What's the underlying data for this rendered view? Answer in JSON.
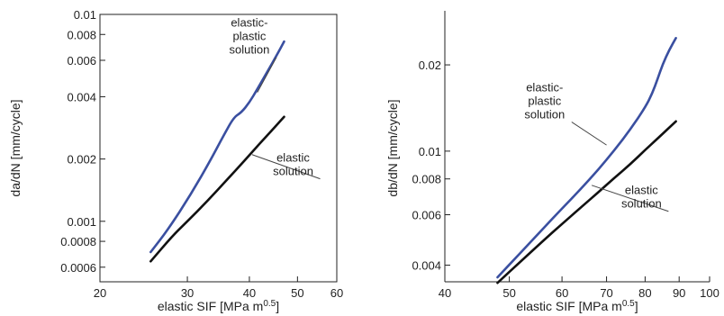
{
  "chart_data": [
    {
      "type": "line",
      "xlabel": "elastic SIF [MPa m",
      "xlabel_sup": "0.5",
      "xlabel_end": "]",
      "ylabel": "da/dN [mm/cycle]",
      "xscale": "log",
      "yscale": "log",
      "xlim": [
        20,
        60
      ],
      "ylim": [
        0.00051,
        0.01
      ],
      "xticks": [
        20,
        30,
        40,
        50,
        60
      ],
      "xtick_labels": [
        "20",
        "30",
        "40",
        "50",
        "60"
      ],
      "yticks": [
        0.0006,
        0.0008,
        0.001,
        0.002,
        0.004,
        0.006,
        0.008,
        0.01
      ],
      "ytick_labels": [
        "0.0006",
        "0.0008",
        "0.001",
        "0.002",
        "0.004",
        "0.006",
        "0.008",
        "0.01"
      ],
      "grid": false,
      "colors": {
        "elastic-plastic": "#3a4fa0",
        "elastic": "#111111"
      },
      "series": [
        {
          "name": "elastic-plastic solution",
          "color": "#3a4fa0",
          "x": [
            25.3,
            27.5,
            30.5,
            33.5,
            35.5,
            37.2,
            38.5,
            40,
            41.5,
            43.5,
            45.5,
            47
          ],
          "y": [
            0.00071,
            0.00092,
            0.00135,
            0.002,
            0.0026,
            0.00318,
            0.00335,
            0.00375,
            0.00435,
            0.0053,
            0.0064,
            0.0074
          ]
        },
        {
          "name": "elastic solution",
          "color": "#111111",
          "x": [
            25.3,
            28,
            30,
            33,
            36,
            39,
            42,
            45,
            47
          ],
          "y": [
            0.00064,
            0.00085,
            0.001,
            0.00126,
            0.00158,
            0.00195,
            0.00238,
            0.00285,
            0.0032
          ]
        }
      ],
      "annotations": [
        {
          "lines": [
            "elastic-",
            "plastic",
            "solution"
          ],
          "x": 40,
          "y": 0.0075,
          "target": [
            41.5,
            0.0042
          ]
        },
        {
          "lines": [
            "elastic",
            "solution"
          ],
          "x": 49,
          "y": 0.0018,
          "target": [
            40.5,
            0.0021
          ]
        }
      ]
    },
    {
      "type": "line",
      "xlabel": "elastic SIF [MPa m",
      "xlabel_sup": "0.5",
      "xlabel_end": "]",
      "ylabel": "db/dN [mm/cycle]",
      "xscale": "log",
      "yscale": "log",
      "xlim": [
        40,
        100
      ],
      "ylim": [
        0.0035,
        0.03
      ],
      "xticks": [
        40,
        50,
        60,
        70,
        80,
        90,
        100
      ],
      "xtick_labels": [
        "40",
        "50",
        "60",
        "70",
        "80",
        "90",
        "100"
      ],
      "yticks": [
        0.004,
        0.006,
        0.008,
        0.01,
        0.02
      ],
      "ytick_labels": [
        "0.004",
        "0.006",
        "0.008",
        "0.01",
        "0.02"
      ],
      "grid": false,
      "colors": {
        "elastic-plastic": "#3a4fa0",
        "elastic": "#111111"
      },
      "series": [
        {
          "name": "elastic-plastic solution",
          "color": "#3a4fa0",
          "x": [
            48,
            52,
            56,
            60,
            64,
            68,
            72,
            76,
            80,
            82,
            83.5,
            85,
            87,
            89
          ],
          "y": [
            0.00363,
            0.00442,
            0.00532,
            0.0063,
            0.00737,
            0.0086,
            0.0101,
            0.0119,
            0.0142,
            0.0159,
            0.0178,
            0.0201,
            0.0226,
            0.0248
          ]
        },
        {
          "name": "elastic solution",
          "color": "#111111",
          "x": [
            48,
            52,
            56,
            60,
            64,
            68,
            72,
            76,
            80,
            84,
            89
          ],
          "y": [
            0.00347,
            0.00412,
            0.00483,
            0.00557,
            0.00635,
            0.00718,
            0.00808,
            0.009,
            0.0101,
            0.0112,
            0.0127
          ]
        }
      ],
      "annotations": [
        {
          "lines": [
            "elastic-",
            "plastic",
            "solution"
          ],
          "x": 56.5,
          "y": 0.0145,
          "target": [
            70,
            0.0105
          ]
        },
        {
          "lines": [
            "elastic",
            "solution"
          ],
          "x": 79,
          "y": 0.0067,
          "target": [
            66.5,
            0.0076
          ]
        }
      ]
    }
  ]
}
